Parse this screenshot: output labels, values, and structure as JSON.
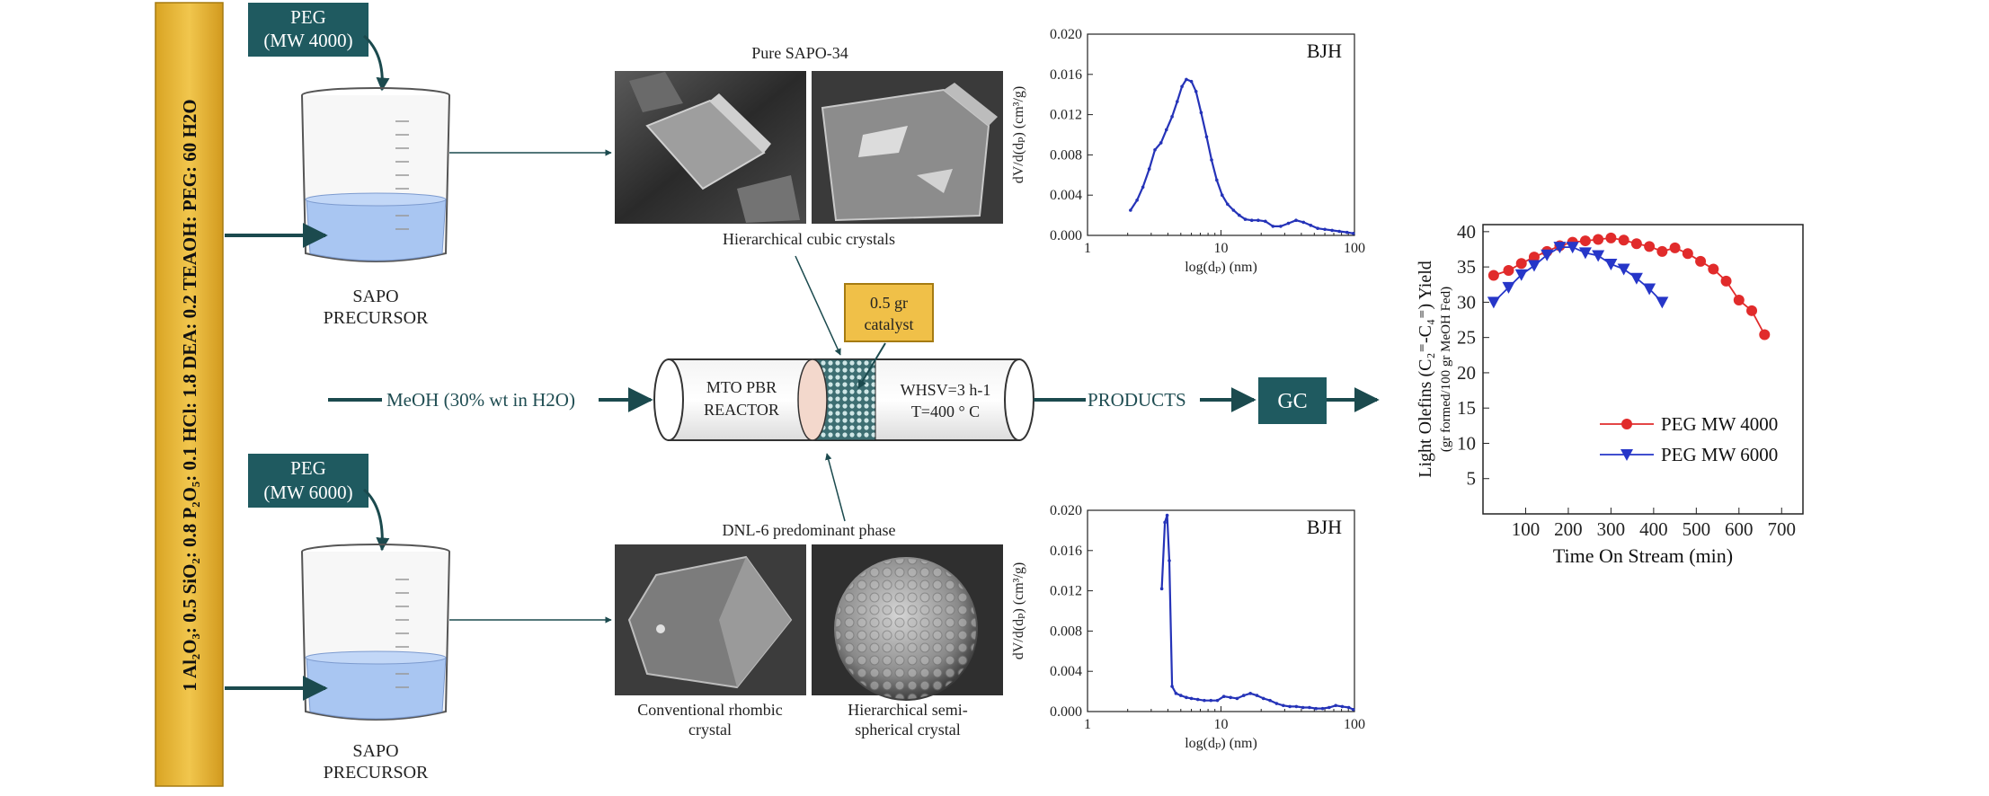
{
  "composition": {
    "text": "1 Al₂O₃: 0.5 SiO₂: 0.8 P₂O₅: 0.1 HCl: 1.8 DEA: 0.2 TEAOH: PEG: 60 H2O",
    "bar_color": "#e8b93a"
  },
  "peg_top": {
    "line1": "PEG",
    "line2": "(MW 4000)"
  },
  "peg_bottom": {
    "line1": "PEG",
    "line2": "(MW 6000)"
  },
  "precursor_top": {
    "line1": "SAPO",
    "line2": "PRECURSOR"
  },
  "precursor_bottom": {
    "line1": "SAPO",
    "line2": "PRECURSOR"
  },
  "images_top": {
    "title": "Pure SAPO-34",
    "caption": "Hierarchical cubic crystals"
  },
  "images_bottom": {
    "title": "DNL-6 predominant phase",
    "caption_left": "Conventional rhombic\ncrystal",
    "caption_right": "Hierarchical semi-\nspherical crystal"
  },
  "catalyst_box": {
    "line1": "0.5 gr",
    "line2": "catalyst"
  },
  "feed_label": "MeOH (30% wt in H2O)",
  "reactor": {
    "line1": "MTO PBR",
    "line2": "REACTOR",
    "cond1": "WHSV=3 h-1",
    "cond2": "T=400 ° C"
  },
  "products_label": "PRODUCTS",
  "gc_label": "GC",
  "colors": {
    "teal_box": "#1f5a60",
    "arrow": "#1b4a4e",
    "liquid": "#a9c6f2",
    "series_red": "#e12b2b",
    "series_blue": "#2636c8"
  },
  "chart_data": [
    {
      "type": "line",
      "id": "bjh_top",
      "title": "BJH",
      "xlabel": "log(dₚ) (nm)",
      "ylabel": "dV/d(dₚ) (cm³/g)",
      "xscale": "log",
      "xlim": [
        1,
        100
      ],
      "ylim": [
        0,
        0.02
      ],
      "xticks": [
        "1",
        "10",
        "100"
      ],
      "yticks": [
        "0.000",
        "0.004",
        "0.008",
        "0.012",
        "0.016",
        "0.020"
      ],
      "series": [
        {
          "x": [
            2.1,
            2.35,
            2.6,
            2.9,
            3.2,
            3.55,
            3.9,
            4.3,
            4.7,
            5.1,
            5.5,
            6.0,
            6.5,
            7.1,
            7.8,
            8.5,
            9.3,
            10.2,
            11.2,
            12.4,
            13.7,
            15.2,
            17.0,
            19.0,
            21.5,
            24.5,
            28.0,
            32.0,
            36.5,
            41.5,
            47.0,
            53.0,
            60.0,
            68.0,
            77.0,
            88.0,
            98.0
          ],
          "y": [
            0.0025,
            0.0035,
            0.0048,
            0.0066,
            0.0085,
            0.0092,
            0.0105,
            0.0118,
            0.0133,
            0.0148,
            0.0155,
            0.0153,
            0.0143,
            0.0122,
            0.0098,
            0.0075,
            0.0055,
            0.004,
            0.0031,
            0.0025,
            0.002,
            0.0016,
            0.0015,
            0.0015,
            0.0014,
            0.0009,
            0.0009,
            0.0012,
            0.0015,
            0.0013,
            0.001,
            0.0007,
            0.0006,
            0.0005,
            0.0004,
            0.0003,
            0.0002
          ]
        }
      ]
    },
    {
      "type": "line",
      "id": "bjh_bottom",
      "title": "BJH",
      "xlabel": "log(dₚ) (nm)",
      "ylabel": "dV/d(dₚ) (cm³/g)",
      "xscale": "log",
      "xlim": [
        1,
        100
      ],
      "ylim": [
        0,
        0.02
      ],
      "xticks": [
        "1",
        "10",
        "100"
      ],
      "yticks": [
        "0.000",
        "0.004",
        "0.008",
        "0.012",
        "0.016",
        "0.020"
      ],
      "series": [
        {
          "x": [
            3.6,
            3.8,
            3.95,
            4.1,
            4.3,
            4.6,
            5.0,
            5.5,
            6.0,
            6.7,
            7.5,
            8.4,
            9.4,
            10.5,
            11.8,
            13.2,
            14.8,
            16.6,
            18.6,
            20.8,
            23.3,
            26.1,
            29.3,
            32.8,
            36.7,
            41.1,
            46.0,
            51.5,
            57.7,
            64.6,
            72.4,
            81.0,
            90.7,
            98.0
          ],
          "y": [
            0.0122,
            0.0188,
            0.0195,
            0.015,
            0.0025,
            0.0018,
            0.0016,
            0.0014,
            0.0013,
            0.0012,
            0.0011,
            0.0011,
            0.0011,
            0.0015,
            0.0014,
            0.0013,
            0.0016,
            0.0018,
            0.0016,
            0.0013,
            0.0011,
            0.0008,
            0.0006,
            0.0005,
            0.0005,
            0.0004,
            0.0004,
            0.0003,
            0.0003,
            0.0004,
            0.0006,
            0.0005,
            0.0004,
            0.0002
          ]
        }
      ]
    },
    {
      "type": "line",
      "id": "yield",
      "xlabel": "Time On Stream (min)",
      "ylabel": "Light Olefins (C₂⁼-C₄⁼) Yield",
      "ylabel2": "(gr formed/100 gr MeOH Fed)",
      "xlim": [
        0,
        750
      ],
      "ylim": [
        0,
        41
      ],
      "xticks": [
        "100",
        "200",
        "300",
        "400",
        "500",
        "600",
        "700"
      ],
      "yticks": [
        "5",
        "10",
        "15",
        "20",
        "25",
        "30",
        "35",
        "40"
      ],
      "legend": "bottom-right",
      "series": [
        {
          "name": "PEG MW 4000",
          "marker": "circle",
          "color": "#e12b2b",
          "x": [
            25,
            60,
            90,
            120,
            150,
            180,
            210,
            240,
            270,
            300,
            330,
            360,
            390,
            420,
            450,
            480,
            510,
            540,
            570,
            600,
            630,
            660
          ],
          "y": [
            33.8,
            34.5,
            35.5,
            36.4,
            37.2,
            38.0,
            38.5,
            38.7,
            38.9,
            39.1,
            38.8,
            38.3,
            37.9,
            37.2,
            37.7,
            36.9,
            35.8,
            34.7,
            33.0,
            30.3,
            28.8,
            25.4
          ]
        },
        {
          "name": "PEG MW 6000",
          "marker": "triangle-down",
          "color": "#2636c8",
          "x": [
            25,
            60,
            90,
            120,
            150,
            180,
            210,
            240,
            270,
            300,
            330,
            360,
            390,
            420
          ],
          "y": [
            30.0,
            32.1,
            33.9,
            35.2,
            36.7,
            37.8,
            37.8,
            37.0,
            36.6,
            35.4,
            34.7,
            33.4,
            31.9,
            30.0
          ]
        }
      ]
    }
  ]
}
